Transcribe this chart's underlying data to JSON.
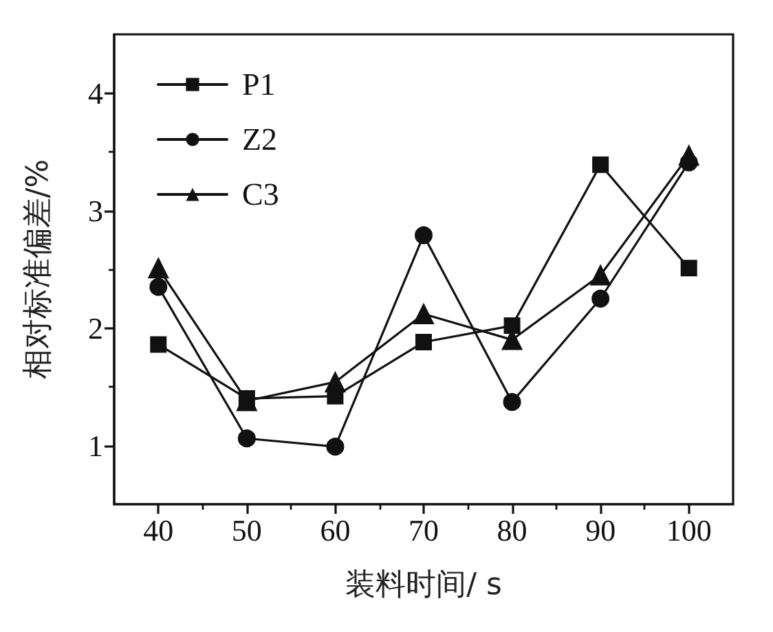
{
  "chart_data": {
    "type": "line",
    "xlabel": "装料时间/ s",
    "ylabel": "相对标准偏差/%",
    "x": [
      40,
      50,
      60,
      70,
      80,
      90,
      100
    ],
    "series": [
      {
        "name": "P1",
        "color": "#111111",
        "marker": "square",
        "values": [
          1.86,
          1.4,
          1.42,
          1.88,
          2.02,
          3.39,
          2.51
        ]
      },
      {
        "name": "Z2",
        "color": "#111111",
        "marker": "circle",
        "values": [
          2.35,
          1.06,
          0.99,
          2.79,
          1.37,
          2.25,
          3.41
        ]
      },
      {
        "name": "C3",
        "color": "#111111",
        "marker": "triangle",
        "values": [
          2.51,
          1.38,
          1.54,
          2.12,
          1.9,
          2.45,
          3.47
        ]
      }
    ],
    "xlim": [
      35,
      105
    ],
    "xticks": [
      40,
      {
        "value": 45,
        "label": null
      },
      50,
      {
        "value": 55,
        "label": null
      },
      60,
      {
        "value": 65,
        "label": null
      },
      70,
      {
        "value": 75,
        "label": null
      },
      80,
      {
        "value": 85,
        "label": null
      },
      90,
      {
        "value": 95,
        "label": null
      },
      100
    ],
    "ylim": [
      0.5,
      4.5
    ],
    "yticks": [
      1,
      {
        "value": 1.5,
        "label": null
      },
      2,
      {
        "value": 2.5,
        "label": null
      },
      3,
      {
        "value": 3.5,
        "label": null
      },
      4
    ],
    "legend": "top left",
    "line_style": "solid"
  }
}
